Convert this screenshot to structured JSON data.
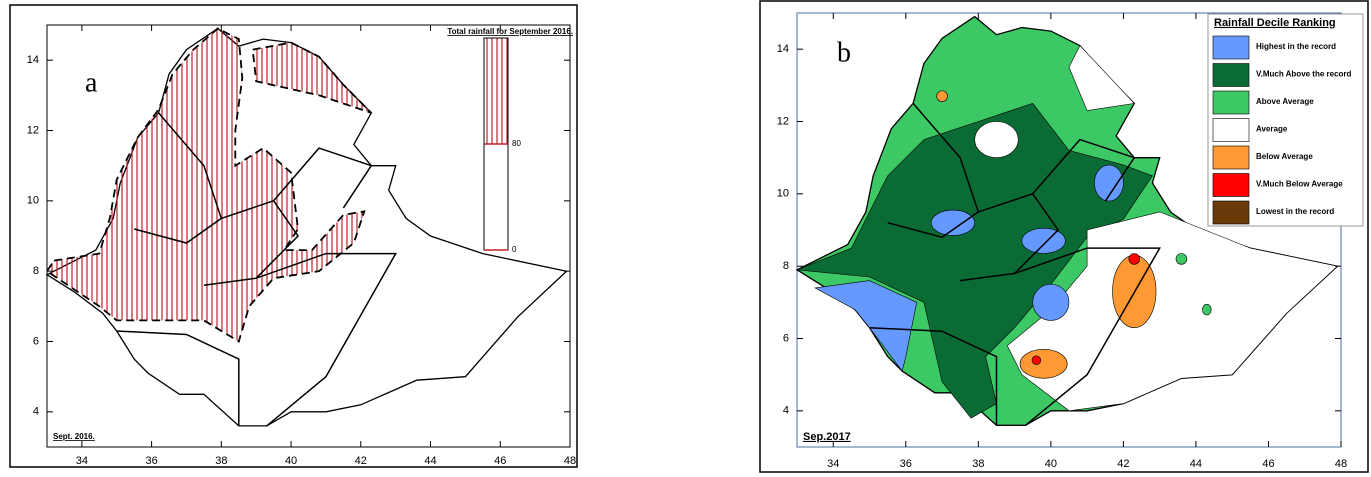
{
  "panels": [
    {
      "label": "a",
      "title": "Total rainfall for September 2016.",
      "footer": "Sept. 2016.",
      "xlim": [
        33,
        48
      ],
      "ylim": [
        3,
        15
      ],
      "xticks": [
        34,
        36,
        38,
        40,
        42,
        44,
        46,
        48
      ],
      "yticks": [
        4,
        6,
        8,
        10,
        12,
        14
      ],
      "colorbar": {
        "lim": [
          0,
          160
        ],
        "ticks": [
          0,
          80
        ],
        "color": "#c0202a"
      }
    },
    {
      "label": "b",
      "footer": "Sep.2017",
      "xlim": [
        33,
        48
      ],
      "ylim": [
        3,
        15
      ],
      "xticks": [
        34,
        36,
        38,
        40,
        42,
        44,
        46,
        48
      ],
      "yticks": [
        4,
        6,
        8,
        10,
        12,
        14
      ],
      "legend": {
        "title": "Rainfall Decile Ranking",
        "items": [
          {
            "name": "Highest in the record",
            "color": "#6699ff"
          },
          {
            "name": "V.Much Above the record",
            "color": "#0b6b35"
          },
          {
            "name": "Above Average",
            "color": "#3cc864"
          },
          {
            "name": "Average",
            "color": "#ffffff"
          },
          {
            "name": "Below Average",
            "color": "#ff9933"
          },
          {
            "name": "V.Much Below Average",
            "color": "#ff0000"
          },
          {
            "name": "Lowest in the record",
            "color": "#6b3a0a"
          }
        ]
      }
    }
  ]
}
